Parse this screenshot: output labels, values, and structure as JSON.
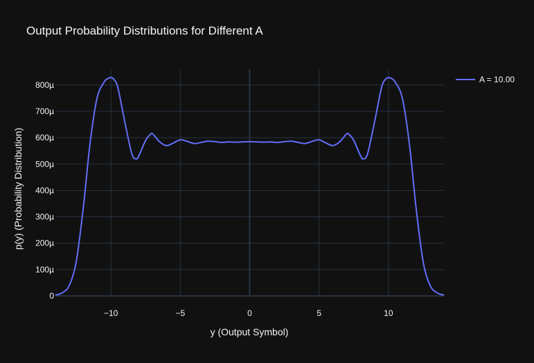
{
  "chart_data": {
    "type": "line",
    "title": "Output Probability Distributions for Different A",
    "xlabel": "y (Output Symbol)",
    "ylabel": "p(y) (Probability Distribution)",
    "xlim": [
      -14,
      14
    ],
    "ylim": [
      0,
      0.00086
    ],
    "x_ticks": [
      -10,
      -5,
      0,
      5,
      10
    ],
    "x_tick_labels": [
      "−10",
      "−5",
      "0",
      "5",
      "10"
    ],
    "y_ticks": [
      0,
      0.0001,
      0.0002,
      0.0003,
      0.0004,
      0.0005,
      0.0006,
      0.0007,
      0.0008
    ],
    "y_tick_labels": [
      "0",
      "100µ",
      "200µ",
      "300µ",
      "400µ",
      "500µ",
      "600µ",
      "700µ",
      "800µ"
    ],
    "grid": true,
    "legend_position": "top-right",
    "series": [
      {
        "name": "A = 10.00",
        "color": "#636efa",
        "x": [
          -14,
          -13.5,
          -13,
          -12.5,
          -12,
          -11.5,
          -11,
          -10.5,
          -10.2,
          -10,
          -9.8,
          -9.5,
          -9,
          -8.5,
          -8.2,
          -8,
          -7.5,
          -7.2,
          -7,
          -6.5,
          -6,
          -5.5,
          -5,
          -4.5,
          -4,
          -3.5,
          -3,
          -2.5,
          -2,
          -1.5,
          -1,
          -0.5,
          0,
          0.5,
          1,
          1.5,
          2,
          2.5,
          3,
          3.5,
          4,
          4.5,
          5,
          5.5,
          6,
          6.5,
          7,
          7.2,
          7.5,
          8,
          8.2,
          8.5,
          9,
          9.5,
          9.8,
          10,
          10.2,
          10.5,
          11,
          11.5,
          12,
          12.5,
          13,
          13.5,
          14
        ],
        "y": [
          3e-06,
          1.2e-05,
          4e-05,
          0.00013,
          0.00033,
          0.00058,
          0.00075,
          0.00081,
          0.000825,
          0.000828,
          0.000822,
          0.00079,
          0.00066,
          0.00054,
          0.00052,
          0.00053,
          0.00059,
          0.00061,
          0.000615,
          0.000585,
          0.00057,
          0.00058,
          0.000592,
          0.000586,
          0.000578,
          0.000582,
          0.000587,
          0.000585,
          0.000582,
          0.000584,
          0.000583,
          0.000584,
          0.000585,
          0.000584,
          0.000583,
          0.000584,
          0.000582,
          0.000585,
          0.000587,
          0.000582,
          0.000578,
          0.000586,
          0.000592,
          0.00058,
          0.00057,
          0.000585,
          0.000615,
          0.00061,
          0.00059,
          0.00053,
          0.00052,
          0.00054,
          0.00066,
          0.00079,
          0.000822,
          0.000828,
          0.000825,
          0.00081,
          0.00075,
          0.00058,
          0.00033,
          0.00013,
          4e-05,
          1.2e-05,
          3e-06
        ]
      }
    ]
  }
}
